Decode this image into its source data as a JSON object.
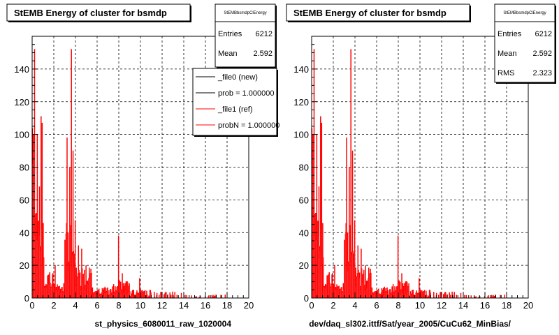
{
  "colors": {
    "ref": "#ff0000",
    "new": "#000000",
    "grid": "#000000"
  },
  "chart_data": [
    {
      "type": "bar",
      "title": "StEMB Energy of cluster for bsmdp",
      "xlabel": "st_physics_6080011_raw_1020004",
      "ylabel": "",
      "xlim": [
        0,
        20
      ],
      "ylim": [
        0,
        160
      ],
      "xticks": [
        "0",
        "2",
        "4",
        "6",
        "8",
        "10",
        "12",
        "14",
        "16",
        "18",
        "20"
      ],
      "yticks": [
        "0",
        "20",
        "40",
        "60",
        "80",
        "100",
        "120",
        "140"
      ],
      "grid": true,
      "stats": {
        "name": "StEMBbsmdpClEnergy",
        "rows": [
          {
            "label": "Entries",
            "value": "6212"
          },
          {
            "label": "Mean",
            "value": "2.592"
          }
        ]
      },
      "legend": {
        "placement": "top-right",
        "entries": [
          {
            "label": "_file0 (new)",
            "color": "#000000"
          },
          {
            "label": "prob = 1.000000",
            "color": "#000000"
          },
          {
            "label": "_file1 (ref)",
            "color": "#ff0000"
          },
          {
            "label": "probN = 1.000000",
            "color": "#ff0000"
          }
        ]
      },
      "peaks": [
        {
          "x": 0.2,
          "y": 152
        },
        {
          "x": 0.45,
          "y": 100
        },
        {
          "x": 0.7,
          "y": 68
        },
        {
          "x": 0.8,
          "y": 111
        },
        {
          "x": 0.95,
          "y": 107
        },
        {
          "x": 2.1,
          "y": 20
        },
        {
          "x": 3.2,
          "y": 98
        },
        {
          "x": 3.45,
          "y": 80
        },
        {
          "x": 3.6,
          "y": 152
        },
        {
          "x": 3.8,
          "y": 90
        },
        {
          "x": 4.3,
          "y": 32
        },
        {
          "x": 4.6,
          "y": 30
        },
        {
          "x": 7.95,
          "y": 38
        },
        {
          "x": 8.3,
          "y": 15
        },
        {
          "x": 9.9,
          "y": 12
        }
      ]
    },
    {
      "type": "bar",
      "title": "StEMB Energy of cluster for bsmdp",
      "xlabel": "dev/daq_sl302.ittf/Sat/year_2005/CuCu62_MinBias/",
      "ylabel": "",
      "xlim": [
        0,
        20
      ],
      "ylim": [
        0,
        160
      ],
      "xticks": [
        "0",
        "2",
        "4",
        "6",
        "8",
        "10",
        "12",
        "14",
        "16",
        "18",
        "20"
      ],
      "yticks": [
        "0",
        "20",
        "40",
        "60",
        "80",
        "100",
        "120",
        "140"
      ],
      "grid": true,
      "stats": {
        "name": "StEMBbsmdpClEnergy",
        "rows": [
          {
            "label": "Entries",
            "value": "6212"
          },
          {
            "label": "Mean",
            "value": "2.592"
          },
          {
            "label": "RMS",
            "value": "2.323"
          }
        ]
      },
      "peaks": [
        {
          "x": 0.2,
          "y": 152
        },
        {
          "x": 0.45,
          "y": 100
        },
        {
          "x": 0.7,
          "y": 68
        },
        {
          "x": 0.8,
          "y": 111
        },
        {
          "x": 0.95,
          "y": 107
        },
        {
          "x": 2.1,
          "y": 20
        },
        {
          "x": 3.2,
          "y": 98
        },
        {
          "x": 3.45,
          "y": 80
        },
        {
          "x": 3.6,
          "y": 152
        },
        {
          "x": 3.8,
          "y": 90
        },
        {
          "x": 4.3,
          "y": 32
        },
        {
          "x": 4.6,
          "y": 30
        },
        {
          "x": 7.95,
          "y": 38
        },
        {
          "x": 8.3,
          "y": 15
        },
        {
          "x": 9.9,
          "y": 12
        }
      ]
    }
  ]
}
